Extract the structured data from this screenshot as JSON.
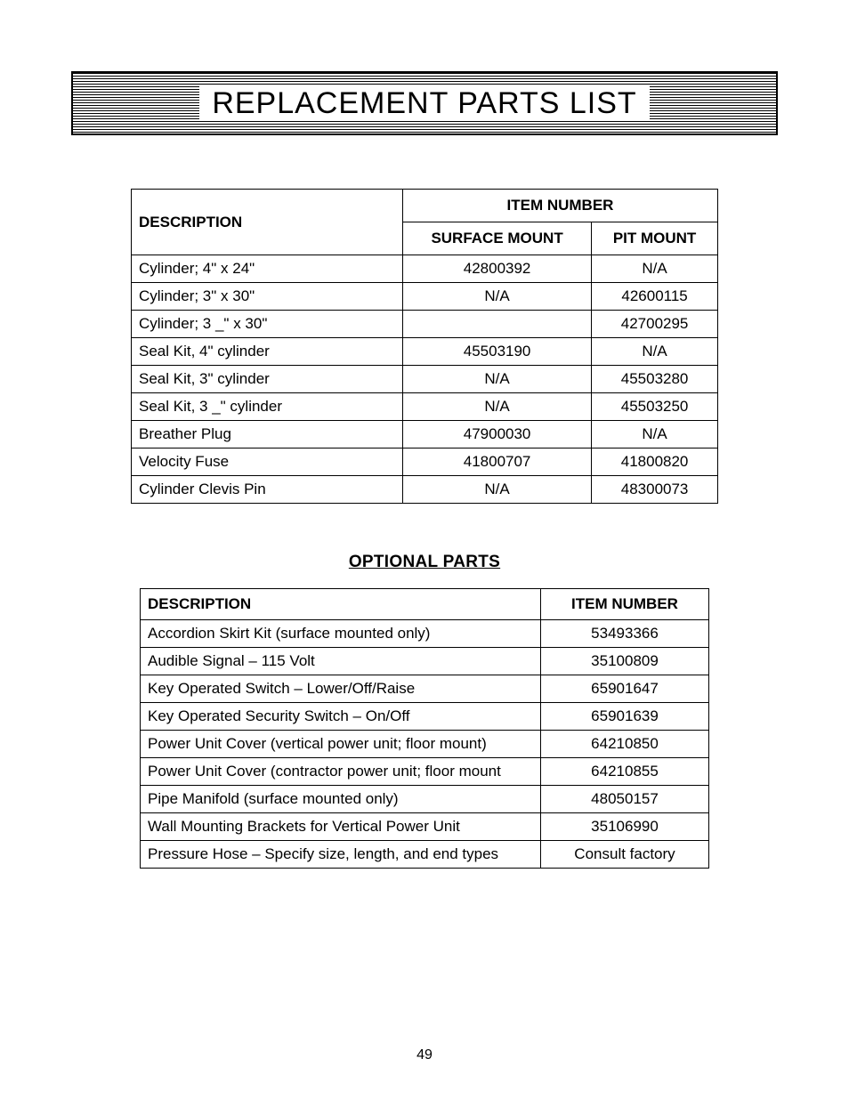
{
  "title": "REPLACEMENT PARTS LIST",
  "page_number": "49",
  "table1": {
    "headers": {
      "description": "DESCRIPTION",
      "item_number": "ITEM NUMBER",
      "surface_mount": "SURFACE MOUNT",
      "pit_mount": "PIT MOUNT"
    },
    "rows": [
      {
        "desc": "Cylinder; 4\" x 24\"",
        "surface": "42800392",
        "pit": "N/A"
      },
      {
        "desc": "Cylinder; 3\" x 30\"",
        "surface": "N/A",
        "pit": "42600115"
      },
      {
        "desc": "Cylinder; 3 _\" x 30\"",
        "surface": "",
        "pit": "42700295"
      },
      {
        "desc": "Seal Kit, 4\" cylinder",
        "surface": "45503190",
        "pit": "N/A"
      },
      {
        "desc": "Seal Kit, 3\" cylinder",
        "surface": "N/A",
        "pit": "45503280"
      },
      {
        "desc": "Seal Kit, 3 _\" cylinder",
        "surface": "N/A",
        "pit": "45503250"
      },
      {
        "desc": "Breather Plug",
        "surface": "47900030",
        "pit": "N/A"
      },
      {
        "desc": "Velocity Fuse",
        "surface": "41800707",
        "pit": "41800820"
      },
      {
        "desc": "Cylinder Clevis Pin",
        "surface": "N/A",
        "pit": "48300073"
      }
    ]
  },
  "optional_title": "OPTIONAL PARTS",
  "table2": {
    "headers": {
      "description": "DESCRIPTION",
      "item_number": "ITEM NUMBER"
    },
    "rows": [
      {
        "desc": "Accordion Skirt Kit (surface mounted only)",
        "num": "53493366"
      },
      {
        "desc": "Audible Signal – 115 Volt",
        "num": "35100809"
      },
      {
        "desc": "Key Operated Switch – Lower/Off/Raise",
        "num": "65901647"
      },
      {
        "desc": "Key Operated Security Switch – On/Off",
        "num": "65901639"
      },
      {
        "desc": "Power Unit Cover (vertical power unit; floor mount)",
        "num": "64210850"
      },
      {
        "desc": "Power Unit Cover (contractor power unit; floor mount",
        "num": "64210855"
      },
      {
        "desc": "Pipe Manifold (surface mounted only)",
        "num": "48050157"
      },
      {
        "desc": "Wall Mounting Brackets for Vertical Power Unit",
        "num": "35106990"
      },
      {
        "desc": "Pressure Hose – Specify size, length, and end types",
        "num": "Consult factory"
      }
    ]
  }
}
